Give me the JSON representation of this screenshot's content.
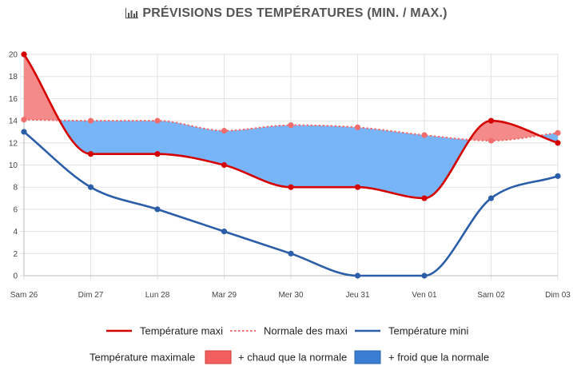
{
  "chart_data": {
    "type": "line",
    "title": "PRÉVISIONS DES TEMPÉRATURES (MIN. / MAX.)",
    "categories": [
      "Sam 26",
      "Dim 27",
      "Lun 28",
      "Mar 29",
      "Mer 30",
      "Jeu 31",
      "Ven 01",
      "Sam 02",
      "Dim 03"
    ],
    "ylim": [
      0,
      20
    ],
    "yticks": [
      0,
      2,
      4,
      6,
      8,
      10,
      12,
      14,
      16,
      18,
      20
    ],
    "grid": true,
    "series": [
      {
        "name": "Température maxi",
        "values": [
          20,
          11,
          11,
          10,
          8,
          8,
          7,
          14,
          12
        ],
        "color": "#d50000",
        "style": "solid"
      },
      {
        "name": "Normale des maxi",
        "values": [
          14.1,
          14,
          14,
          13.1,
          13.6,
          13.4,
          12.7,
          12.2,
          12.9
        ],
        "color": "#f26d6d",
        "style": "dotted"
      },
      {
        "name": "Température mini",
        "values": [
          13,
          8,
          6,
          4,
          2,
          0,
          0,
          7,
          9
        ],
        "color": "#2a5ea8",
        "style": "solid"
      }
    ],
    "fill_legend": {
      "label": "Température maximale",
      "warmer": {
        "label": "+ chaud que la normale",
        "color": "#f25f5f",
        "fill": "#f48a8a"
      },
      "colder": {
        "label": "+ froid que la normale",
        "color": "#3a7ed3",
        "fill": "#78b5f8"
      }
    }
  }
}
